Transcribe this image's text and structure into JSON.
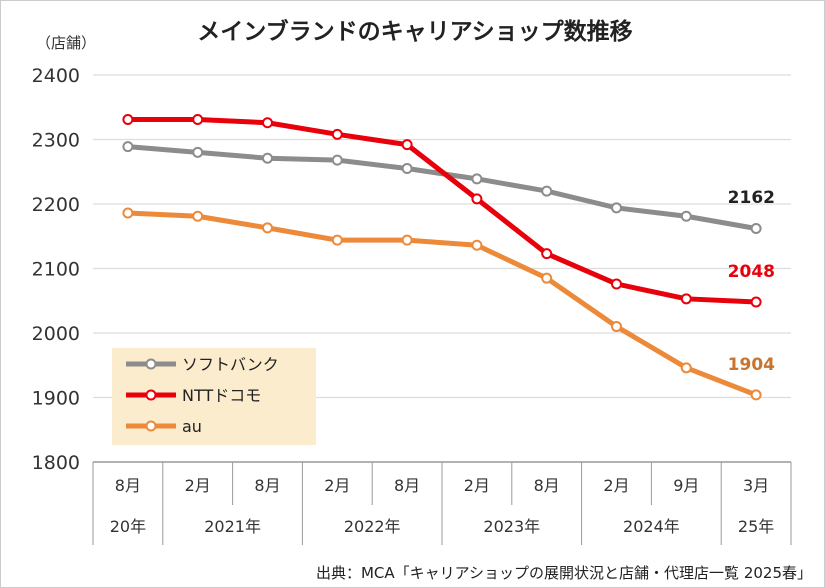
{
  "chart_data": {
    "type": "line",
    "title": "メインブランドのキャリアショップ数推移",
    "ylabel": "（店舗）",
    "ylim": [
      1800,
      2400
    ],
    "yticks": [
      "2400",
      "2300",
      "2200",
      "2100",
      "2000",
      "1900",
      "1800"
    ],
    "grid": true,
    "legend_position": "bottom-left",
    "x_months": [
      "8月",
      "2月",
      "8月",
      "2月",
      "8月",
      "2月",
      "8月",
      "2月",
      "9月",
      "3月"
    ],
    "x_years": [
      {
        "label": "20年",
        "span": 1
      },
      {
        "label": "2021年",
        "span": 2
      },
      {
        "label": "2022年",
        "span": 2
      },
      {
        "label": "2023年",
        "span": 2
      },
      {
        "label": "2024年",
        "span": 2
      },
      {
        "label": "25年",
        "span": 1
      }
    ],
    "series": [
      {
        "name": "ソフトバンク",
        "color": "#8c8c8c",
        "values": [
          2289,
          2280,
          2271,
          2268,
          2255,
          2239,
          2220,
          2194,
          2181,
          2162
        ],
        "end_label": "2162",
        "label_color": "#222222"
      },
      {
        "name": "NTTドコモ",
        "color": "#e8000b",
        "values": [
          2331,
          2331,
          2326,
          2308,
          2292,
          2208,
          2123,
          2076,
          2053,
          2048
        ],
        "end_label": "2048",
        "label_color": "#e8000b"
      },
      {
        "name": "au",
        "color": "#ec8a3a",
        "values": [
          2186,
          2181,
          2163,
          2144,
          2144,
          2136,
          2085,
          2010,
          1946,
          1904
        ],
        "end_label": "1904",
        "label_color": "#c8742e"
      }
    ],
    "legend_bg": "#fbeccd",
    "source": "出典：MCA「キャリアショップの展開状況と店舗・代理店一覧 2025春」"
  }
}
